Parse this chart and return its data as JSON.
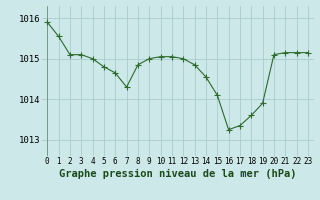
{
  "x": [
    0,
    1,
    2,
    3,
    4,
    5,
    6,
    7,
    8,
    9,
    10,
    11,
    12,
    13,
    14,
    15,
    16,
    17,
    18,
    19,
    20,
    21,
    22,
    23
  ],
  "y": [
    1015.9,
    1015.55,
    1015.1,
    1015.1,
    1015.0,
    1014.8,
    1014.65,
    1014.3,
    1014.85,
    1015.0,
    1015.05,
    1015.05,
    1015.0,
    1014.85,
    1014.55,
    1014.1,
    1013.25,
    1013.35,
    1013.6,
    1013.9,
    1015.1,
    1015.15,
    1015.15,
    1015.15
  ],
  "line_color": "#2d6a2d",
  "marker": "+",
  "marker_size": 4,
  "bg_color": "#cce8e8",
  "grid_color": "#b0d8d8",
  "xlabel": "Graphe pression niveau de la mer (hPa)",
  "xlabel_fontsize": 7.5,
  "ytick_labels": [
    "1013",
    "1014",
    "1015",
    "1016"
  ],
  "ytick_values": [
    1013,
    1014,
    1015,
    1016
  ],
  "xticks": [
    0,
    1,
    2,
    3,
    4,
    5,
    6,
    7,
    8,
    9,
    10,
    11,
    12,
    13,
    14,
    15,
    16,
    17,
    18,
    19,
    20,
    21,
    22,
    23
  ],
  "ylim": [
    1012.6,
    1016.3
  ],
  "xlim": [
    -0.5,
    23.5
  ],
  "tick_fontsize": 5.5,
  "ytick_fontsize": 6.5,
  "linewidth": 0.8,
  "marker_color": "#2d6a2d"
}
